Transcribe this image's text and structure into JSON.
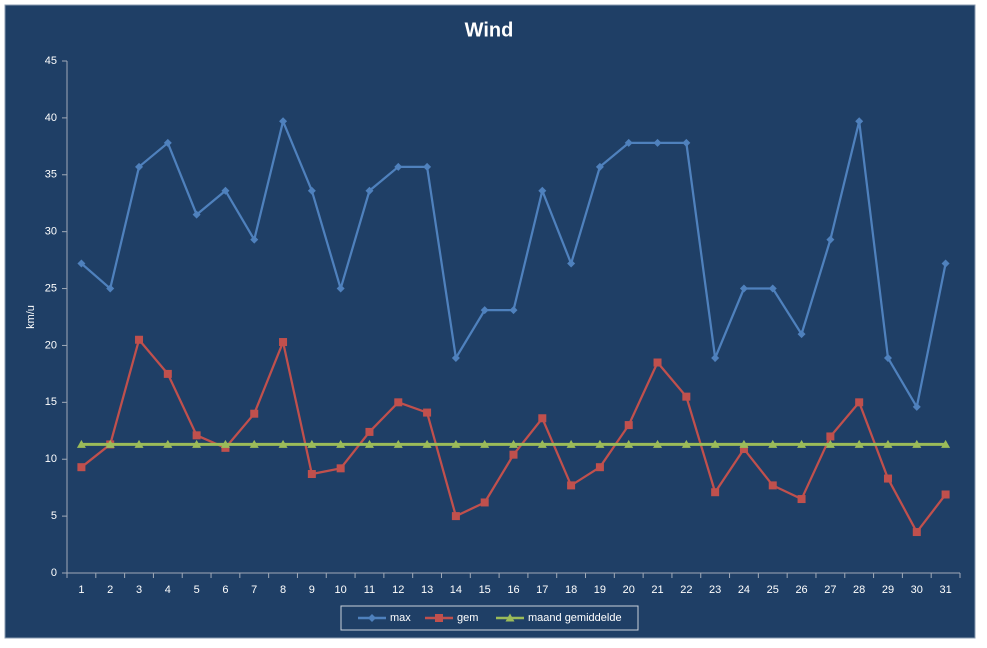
{
  "chart_data": {
    "type": "line",
    "title": "Wind",
    "y_label": "km/u",
    "categories": [
      "1",
      "2",
      "3",
      "4",
      "5",
      "6",
      "7",
      "8",
      "9",
      "10",
      "11",
      "12",
      "13",
      "14",
      "15",
      "16",
      "17",
      "18",
      "19",
      "20",
      "21",
      "22",
      "23",
      "24",
      "25",
      "26",
      "27",
      "28",
      "29",
      "30",
      "31"
    ],
    "series": [
      {
        "name": "max",
        "color": "#4f81bd",
        "marker": "diamond",
        "values": [
          27.2,
          25.0,
          35.7,
          37.8,
          31.5,
          33.6,
          29.3,
          39.7,
          33.6,
          25.0,
          33.6,
          35.7,
          35.7,
          18.9,
          23.1,
          23.1,
          33.6,
          27.2,
          35.7,
          37.8,
          37.8,
          37.8,
          18.9,
          25.0,
          25.0,
          21.0,
          29.3,
          39.7,
          18.9,
          14.6,
          27.2
        ]
      },
      {
        "name": "gem",
        "color": "#c0504d",
        "marker": "square",
        "values": [
          9.3,
          11.3,
          20.5,
          17.5,
          12.1,
          11.0,
          14.0,
          20.3,
          8.7,
          9.2,
          12.4,
          15.0,
          14.1,
          5.0,
          6.2,
          10.4,
          13.6,
          7.7,
          9.3,
          13.0,
          18.5,
          15.5,
          7.1,
          10.9,
          7.7,
          6.5,
          12.0,
          15.0,
          8.3,
          3.6,
          6.9
        ]
      },
      {
        "name": "maand gemiddelde",
        "color": "#9bbb59",
        "marker": "triangle",
        "values": [
          11.3,
          11.3,
          11.3,
          11.3,
          11.3,
          11.3,
          11.3,
          11.3,
          11.3,
          11.3,
          11.3,
          11.3,
          11.3,
          11.3,
          11.3,
          11.3,
          11.3,
          11.3,
          11.3,
          11.3,
          11.3,
          11.3,
          11.3,
          11.3,
          11.3,
          11.3,
          11.3,
          11.3,
          11.3,
          11.3,
          11.3
        ]
      }
    ],
    "ylim": [
      0,
      45
    ],
    "yticks": [
      0,
      5,
      10,
      15,
      20,
      25,
      30,
      35,
      40,
      45
    ],
    "grid": false,
    "legend": "bottom"
  }
}
